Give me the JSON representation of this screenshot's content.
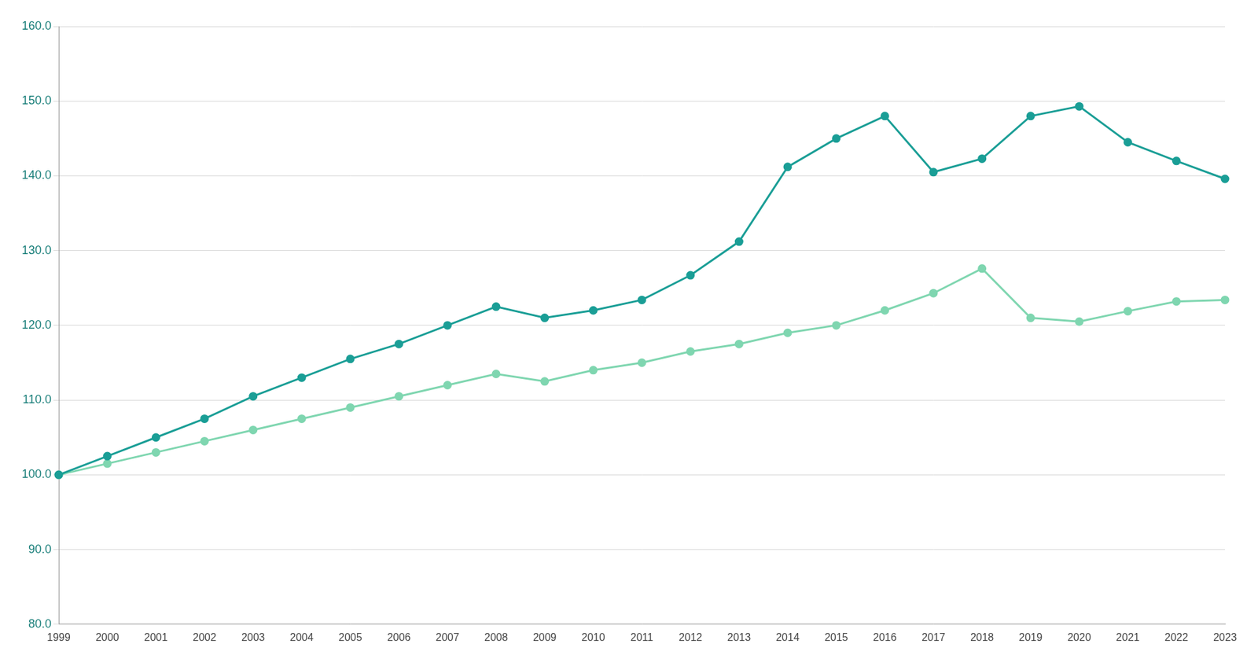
{
  "chart_data": {
    "type": "line",
    "categories": [
      "1999",
      "2000",
      "2001",
      "2002",
      "2003",
      "2004",
      "2005",
      "2006",
      "2007",
      "2008",
      "2009",
      "2010",
      "2011",
      "2012",
      "2013",
      "2014",
      "2015",
      "2016",
      "2017",
      "2018",
      "2019",
      "2020",
      "2021",
      "2022",
      "2023"
    ],
    "series": [
      {
        "color": "#1a9e96",
        "marker": "circle",
        "line_style": "solid",
        "values": [
          100.0,
          102.5,
          105.0,
          107.5,
          110.5,
          113.0,
          115.5,
          117.5,
          120.0,
          122.5,
          121.0,
          122.0,
          123.4,
          126.7,
          131.2,
          141.2,
          145.0,
          148.0,
          140.5,
          142.3,
          148.0,
          149.3,
          144.5,
          142.0,
          139.6
        ]
      },
      {
        "color": "#7fd6b0",
        "marker": "circle",
        "line_style": "solid",
        "values": [
          100.0,
          101.5,
          103.0,
          104.5,
          106.0,
          107.5,
          109.0,
          110.5,
          112.0,
          113.5,
          112.5,
          114.0,
          115.0,
          116.5,
          117.5,
          119.0,
          120.0,
          122.0,
          124.3,
          127.6,
          121.0,
          120.5,
          121.9,
          123.2,
          123.4
        ]
      }
    ],
    "ylim": [
      80,
      160
    ],
    "yticks": [
      {
        "value": 80,
        "label": "80.0"
      },
      {
        "value": 90,
        "label": "90.0"
      },
      {
        "value": 100,
        "label": "100.0"
      },
      {
        "value": 110,
        "label": "110.0"
      },
      {
        "value": 120,
        "label": "120.0"
      },
      {
        "value": 130,
        "label": "130.0"
      },
      {
        "value": 140,
        "label": "140.0"
      },
      {
        "value": 150,
        "label": "150.0"
      },
      {
        "value": 160,
        "label": "160.0"
      }
    ],
    "grid": true
  }
}
